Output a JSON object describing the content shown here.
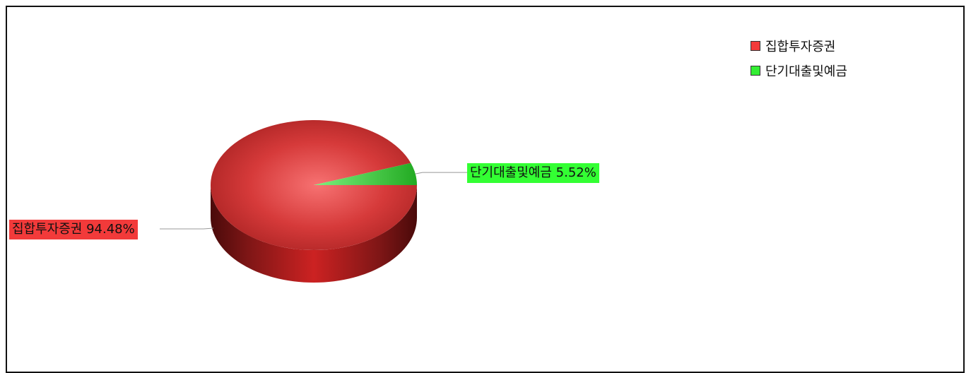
{
  "chart_data": {
    "type": "pie",
    "title": "",
    "legend_position": "top-right",
    "three_d": true,
    "slices": [
      {
        "label": "집합투자증권",
        "value": 94.48,
        "display": "집합투자증권 94.48%",
        "color": "#f23a3a"
      },
      {
        "label": "단기대출및예금",
        "value": 5.52,
        "display": "단기대출및예금 5.52%",
        "color": "#33ee33"
      }
    ]
  }
}
